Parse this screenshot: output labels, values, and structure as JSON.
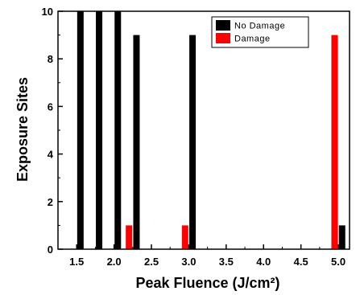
{
  "chart_data": {
    "type": "bar",
    "xlabel": "Peak Fluence (J/cm²)",
    "ylabel": "Exposure Sites",
    "xlim": [
      1.25,
      5.15
    ],
    "ylim": [
      0,
      10
    ],
    "x_ticks": [
      "1.5",
      "2.0",
      "2.5",
      "3.0",
      "3.5",
      "4.0",
      "4.5",
      "5.0"
    ],
    "x_tick_values": [
      1.5,
      2.0,
      2.5,
      3.0,
      3.5,
      4.0,
      4.5,
      5.0
    ],
    "y_ticks": [
      "0",
      "2",
      "4",
      "6",
      "8",
      "10"
    ],
    "y_tick_values": [
      0,
      2,
      4,
      6,
      8,
      10
    ],
    "legend_position": "top-right",
    "series": [
      {
        "name": "No Damage",
        "color": "#000000",
        "points": [
          {
            "x": 1.55,
            "y": 10
          },
          {
            "x": 1.8,
            "y": 10
          },
          {
            "x": 2.05,
            "y": 10
          },
          {
            "x": 2.3,
            "y": 9
          },
          {
            "x": 3.05,
            "y": 9
          },
          {
            "x": 5.05,
            "y": 1
          }
        ]
      },
      {
        "name": "Damage",
        "color": "#ff0000",
        "points": [
          {
            "x": 2.2,
            "y": 1
          },
          {
            "x": 2.95,
            "y": 1
          },
          {
            "x": 4.95,
            "y": 9
          }
        ]
      }
    ]
  }
}
